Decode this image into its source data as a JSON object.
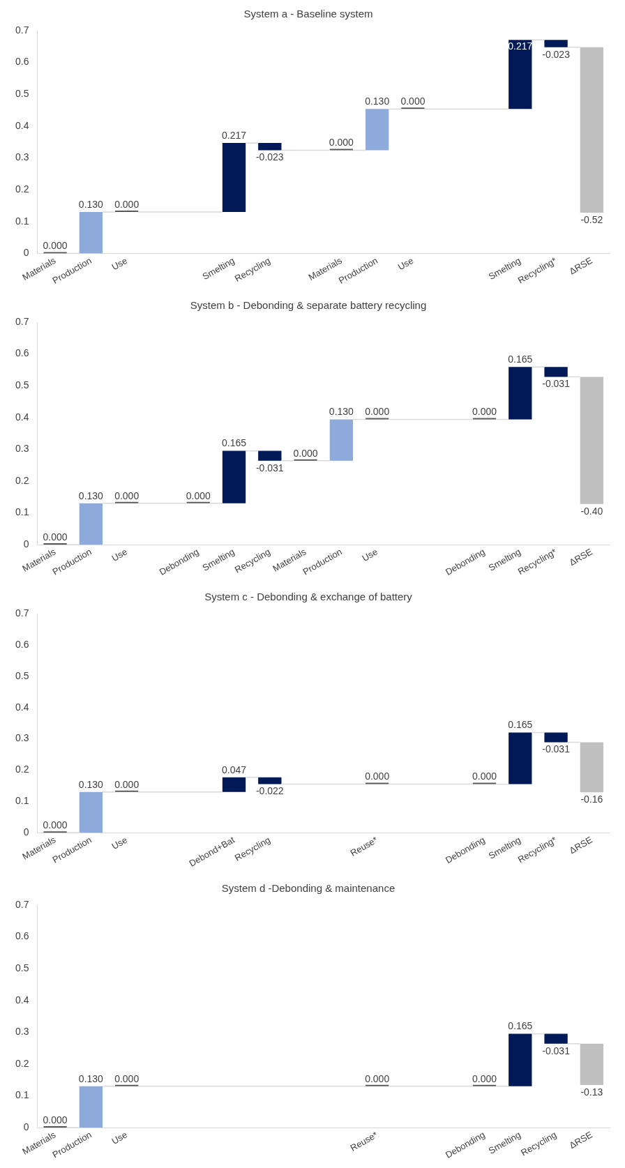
{
  "chart_data": [
    {
      "type": "bar",
      "title": "System a - Baseline system",
      "categories": [
        "Materials",
        "Production",
        "Use",
        null,
        null,
        "Smelting",
        "Recycling",
        null,
        "Materials",
        "Production",
        "Use",
        null,
        null,
        "Smelting",
        "Recycling*",
        "ΔRSE"
      ],
      "values": [
        0.0,
        0.13,
        0.0,
        null,
        null,
        0.217,
        -0.023,
        null,
        0.0,
        0.13,
        0.0,
        null,
        null,
        0.217,
        -0.023,
        -0.52
      ],
      "base": [
        0,
        0,
        0.13,
        null,
        null,
        0.13,
        0.347,
        null,
        0.324,
        0.324,
        0.454,
        null,
        null,
        0.454,
        0.671,
        0.648
      ],
      "colors": [
        "#595959",
        "#8eaadb",
        "#595959",
        null,
        null,
        "#001a57",
        "#001a57",
        null,
        "#595959",
        "#8eaadb",
        "#595959",
        null,
        null,
        "#001a57",
        "#001a57",
        "#c0c0c0"
      ],
      "value_labels": [
        "0.000",
        "0.130",
        "0.000",
        null,
        null,
        "0.217",
        "-0.023",
        null,
        "0.000",
        "0.130",
        "0.000",
        null,
        null,
        "0.217",
        "-0.023",
        "-0.52"
      ],
      "ylim": [
        0,
        0.7
      ],
      "yticks": [
        0,
        0.1,
        0.2,
        0.3,
        0.4,
        0.5,
        0.6,
        0.7
      ],
      "grid": false,
      "legend": false
    },
    {
      "type": "bar",
      "title": "System b - Debonding & separate battery recycling",
      "categories": [
        "Materials",
        "Production",
        "Use",
        null,
        "Debonding",
        "Smelting",
        "Recycling",
        "Materials",
        "Production",
        "Use",
        null,
        null,
        "Debonding",
        "Smelting",
        "Recycling*",
        "ΔRSE"
      ],
      "values": [
        0.0,
        0.13,
        0.0,
        null,
        0.0,
        0.165,
        -0.031,
        0.0,
        0.13,
        0.0,
        null,
        null,
        0.0,
        0.165,
        -0.031,
        -0.4
      ],
      "base": [
        0,
        0,
        0.13,
        null,
        0.13,
        0.13,
        0.295,
        0.264,
        0.264,
        0.394,
        null,
        null,
        0.394,
        0.394,
        0.559,
        0.528
      ],
      "colors": [
        "#595959",
        "#8eaadb",
        "#595959",
        null,
        "#595959",
        "#001a57",
        "#001a57",
        "#595959",
        "#8eaadb",
        "#595959",
        null,
        null,
        "#595959",
        "#001a57",
        "#001a57",
        "#c0c0c0"
      ],
      "value_labels": [
        "0.000",
        "0.130",
        "0.000",
        null,
        "0.000",
        "0.165",
        "-0.031",
        "0.000",
        "0.130",
        "0.000",
        null,
        null,
        "0.000",
        "0.165",
        "-0.031",
        "-0.40"
      ],
      "ylim": [
        0,
        0.7
      ],
      "yticks": [
        0,
        0.1,
        0.2,
        0.3,
        0.4,
        0.5,
        0.6,
        0.7
      ],
      "grid": false,
      "legend": false
    },
    {
      "type": "bar",
      "title": "System c - Debonding & exchange of battery",
      "categories": [
        "Materials",
        "Production",
        "Use",
        null,
        null,
        "Debond+Bat",
        "Recycling",
        null,
        null,
        "Reuse*",
        null,
        null,
        "Debonding",
        "Smelting",
        "Recycling*",
        "ΔRSE"
      ],
      "values": [
        0.0,
        0.13,
        0.0,
        null,
        null,
        0.047,
        -0.022,
        null,
        null,
        0.0,
        null,
        null,
        0.0,
        0.165,
        -0.031,
        -0.16
      ],
      "base": [
        0,
        0,
        0.13,
        null,
        null,
        0.13,
        0.177,
        null,
        null,
        0.155,
        null,
        null,
        0.155,
        0.155,
        0.32,
        0.289
      ],
      "colors": [
        "#595959",
        "#8eaadb",
        "#595959",
        null,
        null,
        "#001a57",
        "#001a57",
        null,
        null,
        "#595959",
        null,
        null,
        "#595959",
        "#001a57",
        "#001a57",
        "#c0c0c0"
      ],
      "value_labels": [
        "0.000",
        "0.130",
        "0.000",
        null,
        null,
        "0.047",
        "-0.022",
        null,
        null,
        "0.000",
        null,
        null,
        "0.000",
        "0.165",
        "-0.031",
        "-0.16"
      ],
      "ylim": [
        0,
        0.7
      ],
      "yticks": [
        0,
        0.1,
        0.2,
        0.3,
        0.4,
        0.5,
        0.6,
        0.7
      ],
      "grid": false,
      "legend": false
    },
    {
      "type": "bar",
      "title": "System d -Debonding & maintenance",
      "categories": [
        "Materials",
        "Production",
        "Use",
        null,
        null,
        null,
        null,
        null,
        null,
        "Reuse*",
        null,
        null,
        "Debonding",
        "Smelting",
        "Recycling",
        "ΔRSE"
      ],
      "values": [
        0.0,
        0.13,
        0.0,
        null,
        null,
        null,
        null,
        null,
        null,
        0.0,
        null,
        null,
        0.0,
        0.165,
        -0.031,
        -0.13
      ],
      "base": [
        0,
        0,
        0.13,
        null,
        null,
        null,
        null,
        null,
        null,
        0.13,
        null,
        null,
        0.13,
        0.13,
        0.295,
        0.264
      ],
      "colors": [
        "#595959",
        "#8eaadb",
        "#595959",
        null,
        null,
        null,
        null,
        null,
        null,
        "#595959",
        null,
        null,
        "#595959",
        "#001a57",
        "#001a57",
        "#c0c0c0"
      ],
      "value_labels": [
        "0.000",
        "0.130",
        "0.000",
        null,
        null,
        null,
        null,
        null,
        null,
        "0.000",
        null,
        null,
        "0.000",
        "0.165",
        "-0.031",
        "-0.13"
      ],
      "ylim": [
        0,
        0.7
      ],
      "yticks": [
        0,
        0.1,
        0.2,
        0.3,
        0.4,
        0.5,
        0.6,
        0.7
      ],
      "grid": false,
      "legend": false
    }
  ]
}
